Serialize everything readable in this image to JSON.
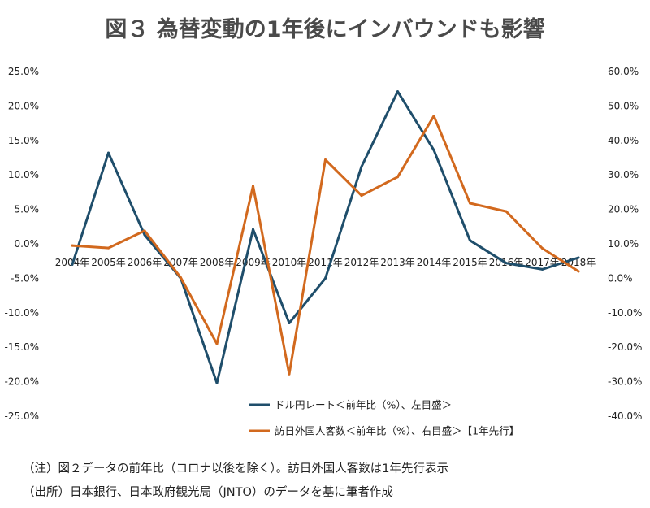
{
  "title": "図３ 為替変動の1年後にインバウンドも影響",
  "chart_data": {
    "type": "line",
    "categories": [
      "2004年",
      "2005年",
      "2006年",
      "2007年",
      "2008年",
      "2009年",
      "2010年",
      "2011年",
      "2012年",
      "2013年",
      "2014年",
      "2015年",
      "2016年",
      "2017年",
      "2018年"
    ],
    "y_left": {
      "ticks": [
        "25.0%",
        "20.0%",
        "15.0%",
        "10.0%",
        "5.0%",
        "0.0%",
        "-5.0%",
        "-10.0%",
        "-15.0%",
        "-20.0%",
        "-25.0%"
      ],
      "ylim": [
        -25,
        25
      ]
    },
    "y_right": {
      "ticks": [
        "60.0%",
        "50.0%",
        "40.0%",
        "30.0%",
        "20.0%",
        "10.0%",
        "0.0%",
        "-10.0%",
        "-20.0%",
        "-30.0%",
        "-40.0%"
      ],
      "ylim": [
        -40,
        60
      ]
    },
    "series": [
      {
        "name": "ドル円レート＜前年比（%）、左目盛＞",
        "axis": "left",
        "color": "#1f4e6b",
        "values": [
          -3.0,
          13.2,
          1.3,
          -5.0,
          -20.2,
          2.1,
          -11.5,
          -5.0,
          11.2,
          22.1,
          13.6,
          0.5,
          -2.8,
          -3.7,
          -2.0
        ]
      },
      {
        "name": "訪日外国人客数＜前年比（%）、右目盛＞【1年先行】",
        "axis": "right",
        "color": "#d2691e",
        "values": [
          9.5,
          8.8,
          13.8,
          0.2,
          -19.0,
          26.8,
          -27.8,
          34.4,
          24.0,
          29.4,
          47.1,
          21.8,
          19.4,
          8.7,
          2.0
        ]
      }
    ]
  },
  "notes": [
    "（注）図２データの前年比（コロナ以後を除く）。訪日外国人客数は1年先行表示",
    "（出所）日本銀行、日本政府観光局（JNTO）のデータを基に筆者作成"
  ]
}
